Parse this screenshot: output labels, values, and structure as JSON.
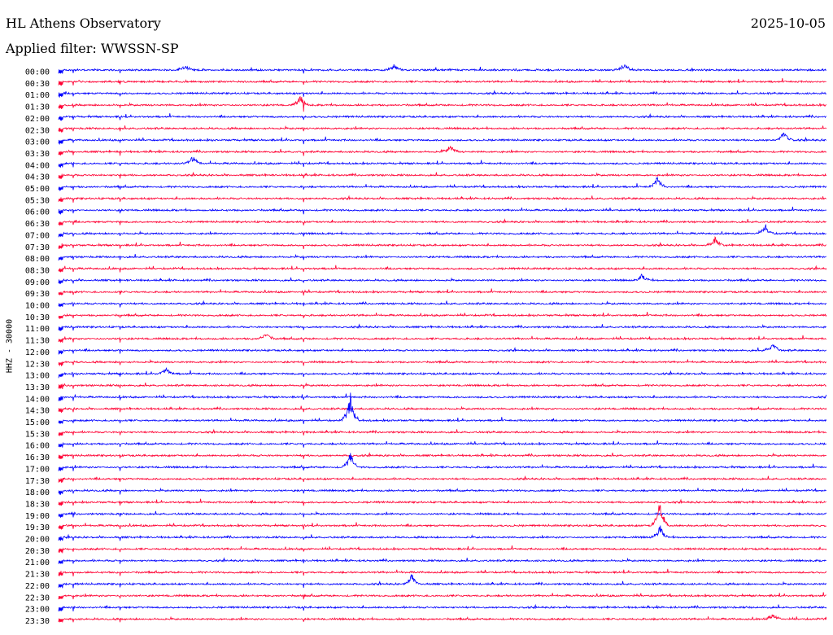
{
  "header": {
    "title": "HL Athens Observatory",
    "date": "2025-10-05",
    "filter": "Applied filter: WWSSN-SP"
  },
  "colors": {
    "even_row": "#0000ff",
    "odd_row": "#ff0033",
    "background": "#ffffff",
    "text": "#000000"
  },
  "chart_data": {
    "type": "line",
    "title": "HL Athens Observatory",
    "ylabel": "HHZ - 30000",
    "rows": [
      "00:00",
      "00:30",
      "01:00",
      "01:30",
      "02:00",
      "02:30",
      "03:00",
      "03:30",
      "04:00",
      "04:30",
      "05:00",
      "05:30",
      "06:00",
      "06:30",
      "07:00",
      "07:30",
      "08:00",
      "08:30",
      "09:00",
      "09:30",
      "10:00",
      "10:30",
      "11:00",
      "11:30",
      "12:00",
      "12:30",
      "13:00",
      "13:30",
      "14:00",
      "14:30",
      "15:00",
      "15:30",
      "16:00",
      "16:30",
      "17:00",
      "17:30",
      "18:00",
      "18:30",
      "19:00",
      "19:30",
      "20:00",
      "20:30",
      "21:00",
      "21:30",
      "22:00",
      "22:30",
      "23:00",
      "23:30"
    ],
    "series_colors": [
      "blue",
      "red"
    ],
    "grid": false,
    "events": [
      {
        "row": "00:00",
        "x_fraction": 0.165,
        "amplitude": 0.55
      },
      {
        "row": "00:00",
        "x_fraction": 0.437,
        "amplitude": 0.5
      },
      {
        "row": "00:00",
        "x_fraction": 0.737,
        "amplitude": 0.65
      },
      {
        "row": "01:30",
        "x_fraction": 0.315,
        "amplitude": 0.9
      },
      {
        "row": "03:00",
        "x_fraction": 0.945,
        "amplitude": 1.0
      },
      {
        "row": "03:30",
        "x_fraction": 0.51,
        "amplitude": 0.7
      },
      {
        "row": "04:00",
        "x_fraction": 0.175,
        "amplitude": 0.7
      },
      {
        "row": "05:00",
        "x_fraction": 0.78,
        "amplitude": 1.0
      },
      {
        "row": "07:00",
        "x_fraction": 0.92,
        "amplitude": 0.8
      },
      {
        "row": "07:30",
        "x_fraction": 0.855,
        "amplitude": 0.7
      },
      {
        "row": "09:00",
        "x_fraction": 0.76,
        "amplitude": 0.6
      },
      {
        "row": "11:30",
        "x_fraction": 0.27,
        "amplitude": 0.6
      },
      {
        "row": "12:00",
        "x_fraction": 0.93,
        "amplitude": 0.9
      },
      {
        "row": "13:00",
        "x_fraction": 0.14,
        "amplitude": 0.6
      },
      {
        "row": "15:00",
        "x_fraction": 0.38,
        "amplitude": 2.5
      },
      {
        "row": "17:00",
        "x_fraction": 0.38,
        "amplitude": 1.4
      },
      {
        "row": "19:30",
        "x_fraction": 0.783,
        "amplitude": 2.5
      },
      {
        "row": "20:00",
        "x_fraction": 0.783,
        "amplitude": 1.2
      },
      {
        "row": "22:00",
        "x_fraction": 0.46,
        "amplitude": 1.0
      },
      {
        "row": "23:30",
        "x_fraction": 0.93,
        "amplitude": 0.6
      }
    ]
  }
}
